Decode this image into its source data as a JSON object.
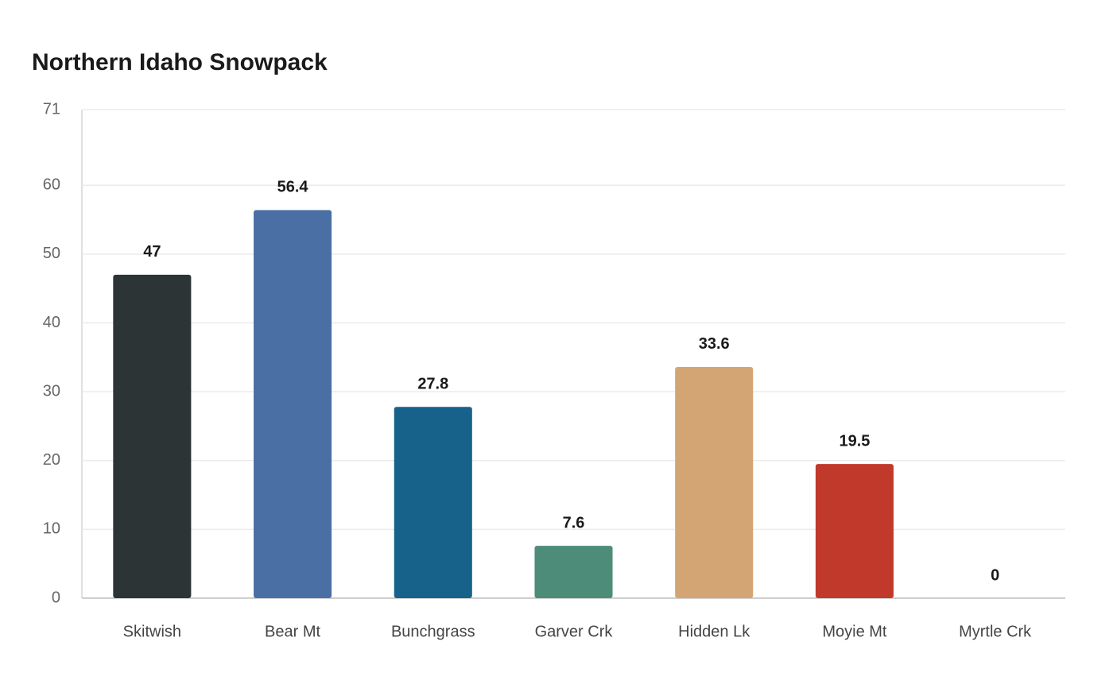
{
  "chart_data": {
    "type": "bar",
    "title": "Northern Idaho Snowpack",
    "categories": [
      "Skitwish",
      "Bear Mt",
      "Bunchgrass",
      "Garver Crk",
      "Hidden Lk",
      "Moyie Mt",
      "Myrtle Crk"
    ],
    "values": [
      47,
      56.4,
      27.8,
      7.6,
      33.6,
      19.5,
      0
    ],
    "colors": [
      "#2d3436",
      "#4a6fa5",
      "#17628a",
      "#4e8c7a",
      "#d4a574",
      "#c0392b",
      "#7f8c8d"
    ],
    "ylim": [
      0,
      71
    ],
    "yticks": [
      0,
      10,
      20,
      30,
      40,
      50,
      60,
      71
    ],
    "grid": true
  }
}
